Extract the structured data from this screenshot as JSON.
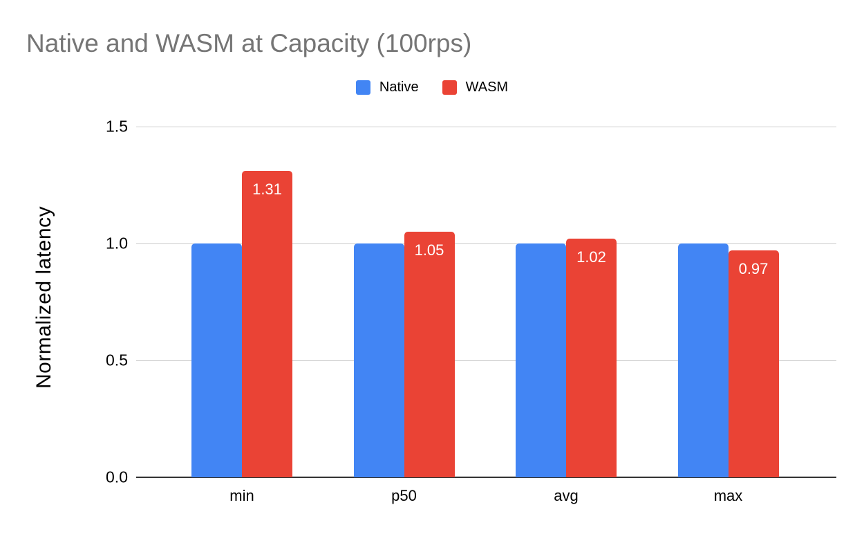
{
  "chart_data": {
    "type": "bar",
    "title": "Native and WASM at Capacity (100rps)",
    "categories": [
      "min",
      "p50",
      "avg",
      "max"
    ],
    "series": [
      {
        "name": "Native",
        "color": "#4285F4",
        "values": [
          1.0,
          1.0,
          1.0,
          1.0
        ],
        "data_labels": [
          "",
          "",
          "",
          ""
        ]
      },
      {
        "name": "WASM",
        "color": "#EA4335",
        "values": [
          1.31,
          1.05,
          1.02,
          0.97
        ],
        "data_labels": [
          "1.31",
          "1.05",
          "1.02",
          "0.97"
        ]
      }
    ],
    "xlabel": "",
    "ylabel": "Normalized latency",
    "ylim": [
      0,
      1.5
    ],
    "ytick_labels": [
      "0.0",
      "0.5",
      "1.0",
      "1.5"
    ],
    "grid": true,
    "legend_position": "top",
    "data_label_color": "#ffffff"
  },
  "colors": {
    "title_text": "#757575",
    "axis_text": "#000000",
    "gridline": "#cccccc",
    "axis_line": "#333333",
    "background": "#ffffff",
    "series_native": "#4285F4",
    "series_wasm": "#EA4335"
  }
}
